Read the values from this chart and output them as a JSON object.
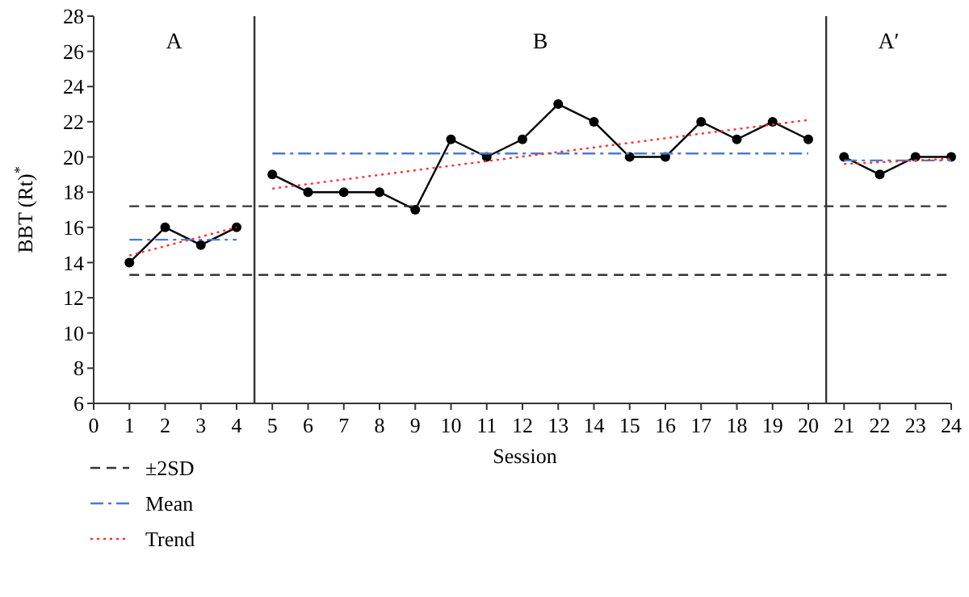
{
  "chart_data": {
    "type": "line",
    "xlabel": "Session",
    "ylabel": "BBT (Rt)$^{*}$",
    "xlim": [
      0,
      24
    ],
    "xticks": [
      0,
      1,
      2,
      3,
      4,
      5,
      6,
      7,
      8,
      9,
      10,
      11,
      12,
      13,
      14,
      15,
      16,
      17,
      18,
      19,
      20,
      21,
      22,
      23,
      24
    ],
    "ylim": [
      6,
      28
    ],
    "yticks": [
      6,
      8,
      10,
      12,
      14,
      16,
      18,
      20,
      22,
      24,
      26,
      28
    ],
    "grid": false,
    "legend": "bottom left",
    "series": [
      {
        "color": "#000000",
        "marker": "circle",
        "line_style": "solid",
        "x": [
          1,
          2,
          3,
          4
        ],
        "values": [
          14,
          16,
          15,
          16
        ]
      },
      {
        "color": "#000000",
        "marker": "circle",
        "line_style": "solid",
        "x": [
          5,
          6,
          7,
          8,
          9,
          10,
          11,
          12,
          13,
          14,
          15,
          16,
          17,
          18,
          19,
          20
        ],
        "values": [
          19,
          18,
          18,
          18,
          17,
          21,
          20,
          21,
          23,
          22,
          20,
          20,
          22,
          21,
          22,
          21
        ]
      },
      {
        "color": "#000000",
        "marker": "circle",
        "line_style": "solid",
        "x": [
          21,
          22,
          23,
          24
        ],
        "values": [
          20,
          19,
          20,
          20
        ]
      },
      {
        "name": "±2SD",
        "color": "#333333",
        "marker": "none",
        "line_style": "dashed",
        "x": [
          1,
          24
        ],
        "values": [
          17.2,
          17.2
        ]
      },
      {
        "color": "#333333",
        "marker": "none",
        "line_style": "dashed",
        "x": [
          1,
          24
        ],
        "values": [
          13.3,
          13.3
        ]
      },
      {
        "name": "Mean",
        "color": "#4a7bd0",
        "marker": "none",
        "line_style": "dashdot",
        "x": [
          1,
          4
        ],
        "values": [
          15.3,
          15.3
        ]
      },
      {
        "color": "#4a7bd0",
        "marker": "none",
        "line_style": "dashdot",
        "x": [
          5,
          20
        ],
        "values": [
          20.2,
          20.2
        ]
      },
      {
        "color": "#4a7bd0",
        "marker": "none",
        "line_style": "dashdot",
        "x": [
          21,
          24
        ],
        "values": [
          19.8,
          19.8
        ]
      },
      {
        "name": "Trend",
        "color": "#ff3030",
        "marker": "none",
        "line_style": "dotted",
        "x": [
          1,
          4
        ],
        "values": [
          14.4,
          16.0
        ]
      },
      {
        "color": "#ff3030",
        "marker": "none",
        "line_style": "dotted",
        "x": [
          5,
          20
        ],
        "values": [
          18.2,
          22.1
        ]
      },
      {
        "color": "#ff3030",
        "marker": "none",
        "line_style": "dotted",
        "x": [
          21,
          24
        ],
        "values": [
          19.6,
          19.9
        ]
      }
    ],
    "ref_lines": [
      {
        "axis": "x",
        "value": 4.5,
        "color": "#333333"
      },
      {
        "axis": "x",
        "value": 20.5,
        "color": "#333333"
      }
    ],
    "annotations": [
      "A",
      "B",
      "A′"
    ]
  }
}
